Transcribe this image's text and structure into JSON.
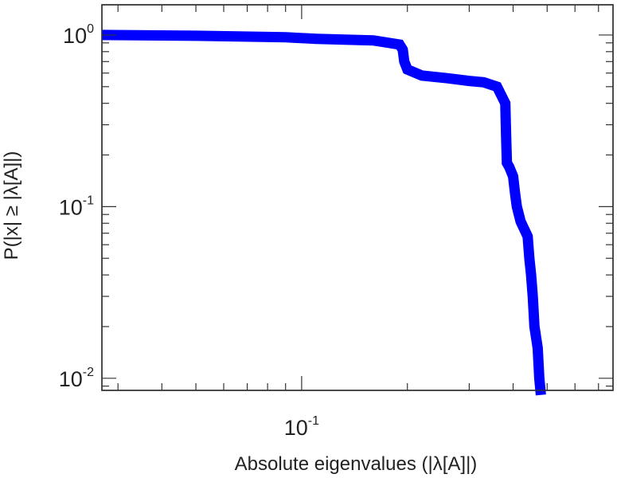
{
  "chart_data": {
    "type": "line",
    "xlabel": "Absolute eigenvalues (|λ[A]|)",
    "ylabel": "P(|x| ≥ |λ[A]|)",
    "x_scale": "log",
    "y_scale": "log",
    "xlim": [
      0.027,
      0.77
    ],
    "ylim": [
      0.0085,
      1.5
    ],
    "x_ticks": [
      {
        "value": 0.1,
        "base": "10",
        "exp": "-1"
      }
    ],
    "y_ticks": [
      {
        "value": 1,
        "base": "10",
        "exp": "0"
      },
      {
        "value": 0.1,
        "base": "10",
        "exp": "-1"
      },
      {
        "value": 0.01,
        "base": "10",
        "exp": "-2"
      }
    ],
    "grid": false,
    "legend": "none",
    "series": [
      {
        "color": "#0000ff",
        "x": [
          0.027,
          0.05,
          0.09,
          0.11,
          0.16,
          0.19,
          0.194,
          0.196,
          0.2,
          0.22,
          0.26,
          0.3,
          0.33,
          0.36,
          0.38,
          0.382,
          0.384,
          0.39,
          0.4,
          0.405,
          0.41,
          0.42,
          0.44,
          0.445,
          0.45,
          0.455,
          0.46,
          0.47,
          0.475,
          0.48
        ],
        "y": [
          1.0,
          0.99,
          0.97,
          0.95,
          0.93,
          0.88,
          0.82,
          0.7,
          0.63,
          0.58,
          0.56,
          0.54,
          0.53,
          0.5,
          0.4,
          0.26,
          0.18,
          0.17,
          0.15,
          0.12,
          0.1,
          0.082,
          0.067,
          0.05,
          0.04,
          0.03,
          0.02,
          0.015,
          0.01,
          0.008
        ]
      }
    ]
  }
}
